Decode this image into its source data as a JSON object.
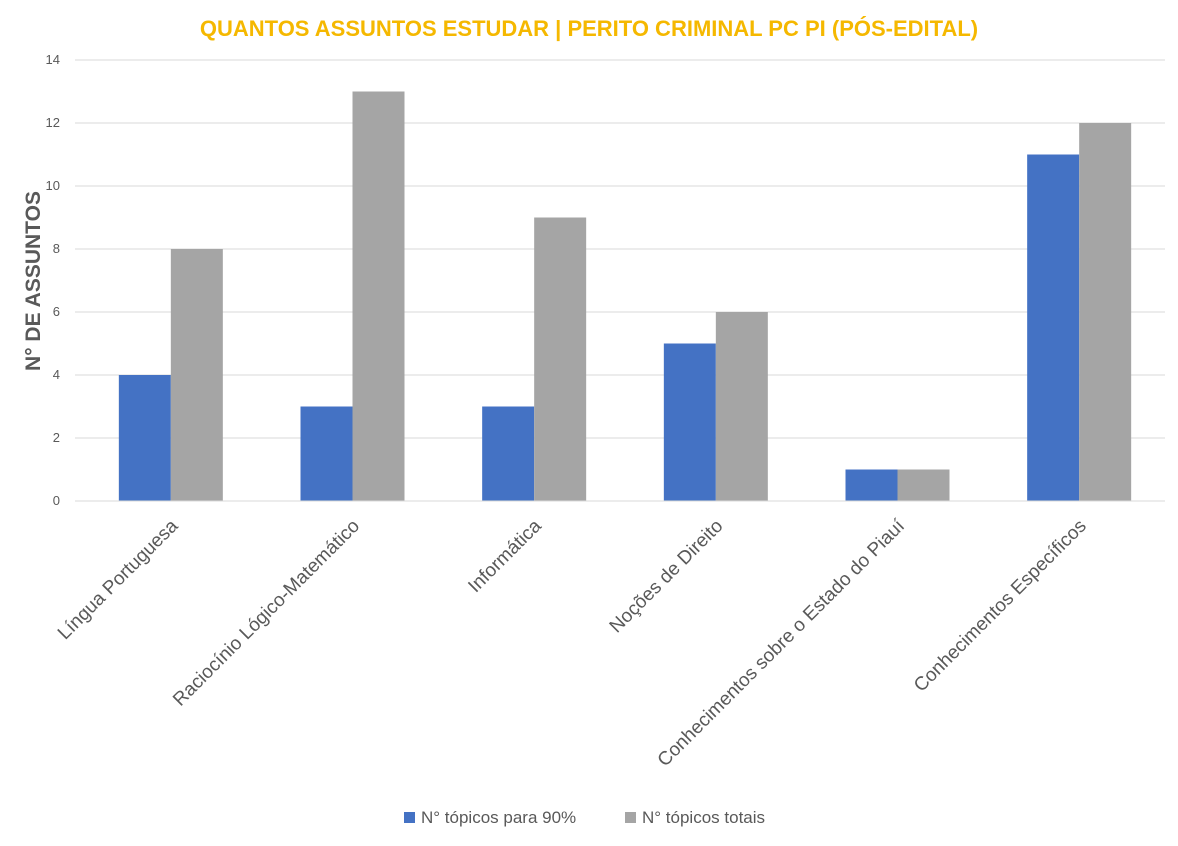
{
  "chart_data": {
    "type": "bar",
    "title": "QUANTOS ASSUNTOS ESTUDAR | PERITO CRIMINAL PC PI (PÓS-EDITAL)",
    "xlabel": "",
    "ylabel": "N° DE ASSUNTOS",
    "ylim": [
      0,
      14
    ],
    "y_ticks": [
      0,
      2,
      4,
      6,
      8,
      10,
      12,
      14
    ],
    "grid": true,
    "legend_position": "bottom",
    "categories": [
      "Língua Portuguesa",
      "Raciocínio Lógico-Matemático",
      "Informática",
      "Noções de Direito",
      "Conhecimentos sobre o Estado do Piauí",
      "Conhecimentos Específicos"
    ],
    "series": [
      {
        "name": "N° tópicos para 90%",
        "color": "#4472c4",
        "values": [
          4,
          3,
          3,
          5,
          1,
          11
        ]
      },
      {
        "name": "N° tópicos totais",
        "color": "#a5a5a5",
        "values": [
          8,
          13,
          9,
          6,
          1,
          12
        ]
      }
    ],
    "title_color": "#f5b800",
    "text_color": "#595959",
    "grid_color": "#d9d9d9"
  }
}
